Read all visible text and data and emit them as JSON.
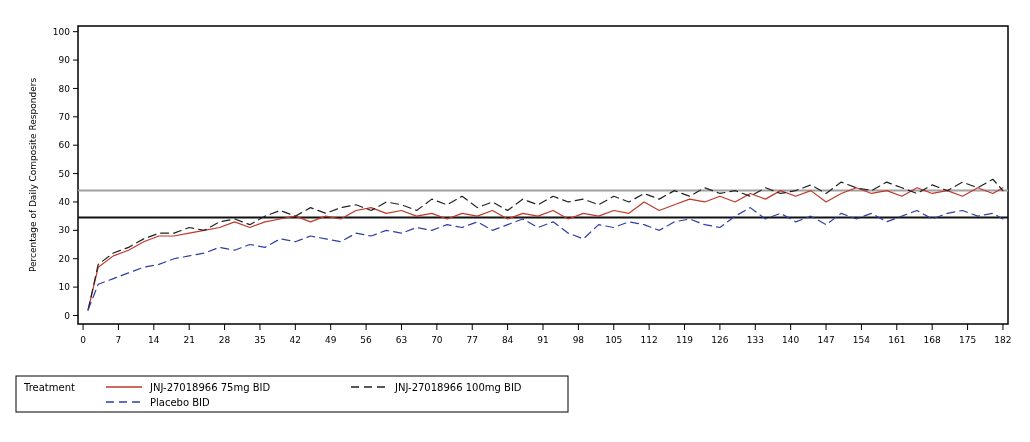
{
  "chart_data": {
    "type": "line",
    "ylabel": "Percentage of Daily Composite Responders",
    "legend_title": "Treatment",
    "legend": "bottom left",
    "xlim": [
      -1,
      183
    ],
    "ylim": [
      -3,
      102
    ],
    "xticks": [
      0,
      7,
      14,
      21,
      28,
      35,
      42,
      49,
      56,
      63,
      70,
      77,
      84,
      91,
      98,
      105,
      112,
      119,
      126,
      133,
      140,
      147,
      154,
      161,
      168,
      175,
      182
    ],
    "yticks": [
      0,
      10,
      20,
      30,
      40,
      50,
      60,
      70,
      80,
      90,
      100
    ],
    "x": [
      1,
      3,
      6,
      9,
      12,
      15,
      18,
      21,
      24,
      27,
      30,
      33,
      36,
      39,
      42,
      45,
      48,
      51,
      54,
      57,
      60,
      63,
      66,
      69,
      72,
      75,
      78,
      81,
      84,
      87,
      90,
      93,
      96,
      99,
      102,
      105,
      108,
      111,
      114,
      117,
      120,
      123,
      126,
      129,
      132,
      135,
      138,
      141,
      144,
      147,
      150,
      153,
      156,
      159,
      162,
      165,
      168,
      171,
      174,
      177,
      180,
      182
    ],
    "series": [
      {
        "name": "JNJ-27018966 75mg BID",
        "color": "#c0392b",
        "line_style": "solid",
        "values": [
          2,
          17,
          21,
          23,
          26,
          28,
          28,
          29,
          30,
          31,
          33,
          31,
          33,
          34,
          35,
          33,
          35,
          34,
          37,
          38,
          36,
          37,
          35,
          36,
          34,
          36,
          35,
          37,
          34,
          36,
          35,
          37,
          34,
          36,
          35,
          37,
          36,
          40,
          37,
          39,
          41,
          40,
          42,
          40,
          43,
          41,
          44,
          42,
          44,
          40,
          43,
          45,
          43,
          44,
          42,
          45,
          43,
          44,
          42,
          45,
          43,
          45
        ]
      },
      {
        "name": "JNJ-27018966 100mg BID",
        "color": "#222222",
        "line_style": "dashed",
        "values": [
          2,
          18,
          22,
          24,
          27,
          29,
          29,
          31,
          30,
          33,
          34,
          32,
          35,
          37,
          35,
          38,
          36,
          38,
          39,
          37,
          40,
          39,
          37,
          41,
          39,
          42,
          38,
          40,
          37,
          41,
          39,
          42,
          40,
          41,
          39,
          42,
          40,
          43,
          41,
          44,
          42,
          45,
          43,
          44,
          42,
          45,
          43,
          44,
          46,
          43,
          47,
          45,
          44,
          47,
          45,
          43,
          46,
          44,
          47,
          45,
          48,
          44
        ]
      },
      {
        "name": "Placebo BID",
        "color": "#2e3fa3",
        "line_style": "dashed",
        "values": [
          2,
          11,
          13,
          15,
          17,
          18,
          20,
          21,
          22,
          24,
          23,
          25,
          24,
          27,
          26,
          28,
          27,
          26,
          29,
          28,
          30,
          29,
          31,
          30,
          32,
          31,
          33,
          30,
          32,
          34,
          31,
          33,
          29,
          27,
          32,
          31,
          33,
          32,
          30,
          33,
          34,
          32,
          31,
          35,
          38,
          34,
          36,
          33,
          35,
          32,
          36,
          34,
          36,
          33,
          35,
          37,
          34,
          36,
          37,
          35,
          36,
          34
        ]
      }
    ],
    "ref_lines": [
      {
        "axis": "y",
        "value": 44,
        "color": "#a0a0a0"
      },
      {
        "axis": "y",
        "value": 34.5,
        "color": "#111111"
      }
    ]
  }
}
